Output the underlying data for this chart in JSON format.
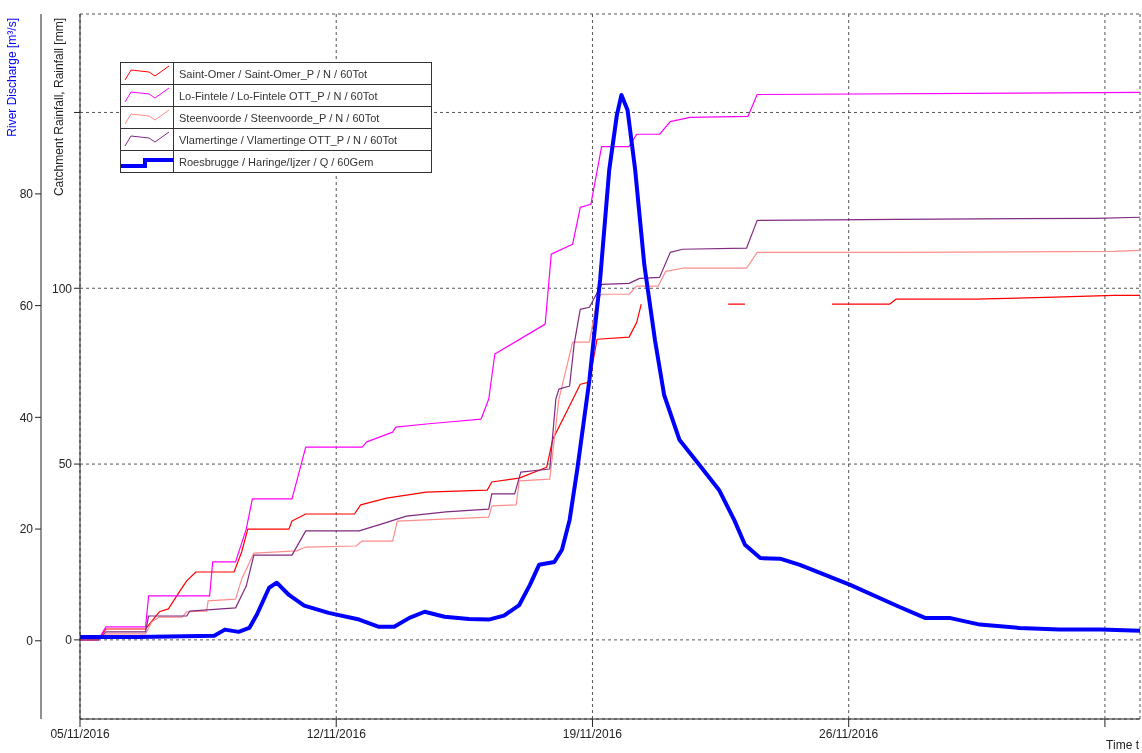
{
  "chart_data": {
    "type": "line",
    "xlabel": "Time t",
    "ylabel": "River Discharge [m³/s]",
    "y2label": "Catchment Rainfall, Rainfall [mm]",
    "xlim": [
      "2016-11-05T00:00",
      "2016-12-03T23:00"
    ],
    "xticks": [
      {
        "value": "2016-11-05",
        "label": "05/11/2016"
      },
      {
        "value": "2016-11-12",
        "label": "12/11/2016"
      },
      {
        "value": "2016-11-19",
        "label": "19/11/2016"
      },
      {
        "value": "2016-11-26",
        "label": "26/11/2016"
      },
      {
        "value": "2016-12-03",
        "label": null
      }
    ],
    "ylim": [
      -14,
      112.2
    ],
    "yticks": [
      0,
      20,
      40,
      60,
      80
    ],
    "y2lim": [
      -22.5,
      178
    ],
    "y2ticks": [
      0,
      50,
      100,
      {
        "value": 150,
        "label": null
      }
    ],
    "grid": true,
    "legend": "top left",
    "series": [
      {
        "name": "Saint-Omer / Saint-Omer_P / N / 60Tot",
        "color": "#ff0000",
        "axis": "y2",
        "x": [
          "2016-11-05T00:00",
          "2016-11-05T12:00",
          "2016-11-05T17:00",
          "2016-11-06T19:00",
          "2016-11-07T04:00",
          "2016-11-07T10:00",
          "2016-11-07T17:00",
          "2016-11-07T22:00",
          "2016-11-08T04:00",
          "2016-11-09T05:00",
          "2016-11-09T10:00",
          "2016-11-09T14:00",
          "2016-11-10T17:00",
          "2016-11-10T19:00",
          "2016-11-11T04:00",
          "2016-11-12T12:00",
          "2016-11-12T16:00",
          "2016-11-13T09:00",
          "2016-11-14T11:00",
          "2016-11-16T03:00",
          "2016-11-16T06:00",
          "2016-11-17T00:00",
          "2016-11-17T18:00",
          "2016-11-17T22:00",
          "2016-11-18T07:00",
          "2016-11-18T16:00",
          "2016-11-18T22:00",
          "2016-11-19T03:00",
          "2016-11-20T00:00",
          "2016-11-20T05:00",
          "2016-11-20T08:00",
          "2016-11-21T12:00",
          "2016-11-22T17:00",
          "2016-11-23T04:00",
          "2016-11-24T09:00",
          "2016-11-25T13:00",
          "2016-11-27T03:00",
          "2016-11-27T07:00",
          "2016-11-29T11:00",
          "2016-12-01T09:00",
          "2016-12-03T06:00",
          "2016-12-03T23:00"
        ],
        "values": [
          0,
          0,
          3.1,
          3.1,
          8.0,
          8.8,
          13.6,
          16.8,
          19.3,
          19.3,
          25.0,
          31.5,
          31.5,
          33.8,
          35.8,
          35.8,
          38.4,
          40.3,
          42.0,
          42.6,
          44.9,
          46.0,
          49.1,
          57.1,
          64.8,
          72.7,
          73.3,
          85.5,
          86.1,
          90.3,
          95.5,
          null,
          95.5,
          95.5,
          null,
          95.5,
          95.5,
          96.9,
          96.9,
          97.4,
          98.0,
          98.0
        ]
      },
      {
        "name": "Lo-Fintele / Lo-Fintele OTT_P / N / 60Tot",
        "color": "#ff00ff",
        "axis": "y2",
        "x": [
          "2016-11-05T00:00",
          "2016-11-05T12:00",
          "2016-11-05T17:00",
          "2016-11-06T19:00",
          "2016-11-06T21:00",
          "2016-11-08T13:00",
          "2016-11-08T15:00",
          "2016-11-09T06:00",
          "2016-11-09T13:00",
          "2016-11-09T17:00",
          "2016-11-10T19:00",
          "2016-11-11T04:00",
          "2016-11-12T17:00",
          "2016-11-12T20:00",
          "2016-11-13T13:00",
          "2016-11-13T15:00",
          "2016-11-14T11:00",
          "2016-11-15T00:00",
          "2016-11-15T23:00",
          "2016-11-16T04:00",
          "2016-11-16T08:00",
          "2016-11-17T17:00",
          "2016-11-17T21:00",
          "2016-11-18T11:00",
          "2016-11-18T16:00",
          "2016-11-18T23:00",
          "2016-11-19T06:00",
          "2016-11-20T00:00",
          "2016-11-20T05:00",
          "2016-11-20T20:00",
          "2016-11-21T03:00",
          "2016-11-21T16:00",
          "2016-11-23T06:00",
          "2016-11-23T12:00",
          "2016-12-03T23:00"
        ],
        "values": [
          0,
          0,
          3.7,
          3.7,
          12.5,
          12.5,
          22.2,
          22.2,
          31.5,
          40.1,
          40.1,
          54.8,
          54.8,
          56.3,
          59.1,
          60.5,
          61.4,
          61.9,
          62.8,
          68.5,
          81.3,
          89.8,
          109.7,
          112.5,
          123.0,
          123.9,
          140.3,
          140.3,
          143.8,
          143.8,
          147.4,
          148.6,
          148.9,
          155.1,
          155.7
        ]
      },
      {
        "name": "Steenvoorde / Steenvoorde_P / N / 60Tot",
        "color": "#ff8c8c",
        "axis": "y2",
        "x": [
          "2016-11-05T00:00",
          "2016-11-05T12:00",
          "2016-11-05T17:00",
          "2016-11-06T19:00",
          "2016-11-06T23:00",
          "2016-11-07T04:00",
          "2016-11-07T19:00",
          "2016-11-07T22:00",
          "2016-11-08T11:00",
          "2016-11-08T12:00",
          "2016-11-09T06:00",
          "2016-11-09T10:00",
          "2016-11-09T18:00",
          "2016-11-10T22:00",
          "2016-11-11T04:00",
          "2016-11-12T13:00",
          "2016-11-12T17:00",
          "2016-11-13T13:00",
          "2016-11-13T16:00",
          "2016-11-16T04:00",
          "2016-11-16T06:00",
          "2016-11-16T22:00",
          "2016-11-17T00:00",
          "2016-11-17T20:00",
          "2016-11-18T02:00",
          "2016-11-18T11:00",
          "2016-11-18T22:00",
          "2016-11-19T03:00",
          "2016-11-19T06:00",
          "2016-11-20T00:00",
          "2016-11-20T05:00",
          "2016-11-20T19:00",
          "2016-11-21T00:00",
          "2016-11-21T11:00",
          "2016-11-23T05:00",
          "2016-11-23T12:00",
          "2016-11-27T09:00",
          "2016-12-03T06:00",
          "2016-12-03T23:00"
        ],
        "values": [
          0,
          0,
          1.7,
          1.7,
          5.1,
          6.5,
          6.5,
          8.0,
          8.2,
          11.1,
          11.6,
          17.3,
          24.7,
          25.3,
          26.4,
          26.7,
          28.1,
          28.1,
          33.8,
          34.9,
          38.1,
          38.4,
          45.2,
          45.7,
          68.5,
          84.7,
          84.7,
          96.9,
          98.3,
          98.3,
          100.6,
          100.6,
          104.8,
          105.7,
          105.7,
          110.2,
          110.2,
          110.5,
          110.8
        ]
      },
      {
        "name": "Vlamertinge / Vlamertinge OTT_P / N / 60Tot",
        "color": "#802a80",
        "axis": "y2",
        "x": [
          "2016-11-05T00:00",
          "2016-11-05T12:00",
          "2016-11-05T17:00",
          "2016-11-06T19:00",
          "2016-11-06T21:00",
          "2016-11-07T22:00",
          "2016-11-08T00:00",
          "2016-11-09T06:00",
          "2016-11-09T13:00",
          "2016-11-09T18:00",
          "2016-11-10T19:00",
          "2016-11-11T04:00",
          "2016-11-12T15:00",
          "2016-11-13T06:00",
          "2016-11-13T22:00",
          "2016-11-15T00:00",
          "2016-11-16T04:00",
          "2016-11-16T06:00",
          "2016-11-16T21:00",
          "2016-11-17T01:00",
          "2016-11-17T20:00",
          "2016-11-18T00:00",
          "2016-11-18T02:00",
          "2016-11-18T09:00",
          "2016-11-18T12:00",
          "2016-11-18T16:00",
          "2016-11-18T22:00",
          "2016-11-19T06:00",
          "2016-11-20T00:00",
          "2016-11-20T07:00",
          "2016-11-20T20:00",
          "2016-11-21T03:00",
          "2016-11-21T11:00",
          "2016-11-23T05:00",
          "2016-11-23T12:00",
          "2016-11-27T08:00",
          "2016-12-02T18:00",
          "2016-12-03T23:00"
        ],
        "values": [
          0,
          0,
          2.3,
          2.3,
          6.8,
          6.8,
          8.2,
          9.1,
          15.3,
          24.1,
          24.1,
          31.0,
          31.0,
          33.0,
          35.2,
          36.4,
          37.2,
          41.5,
          41.5,
          47.7,
          48.6,
          68.5,
          71.3,
          72.2,
          84.1,
          94.0,
          94.6,
          101.1,
          101.4,
          102.8,
          103.1,
          110.2,
          111.1,
          111.4,
          119.3,
          119.6,
          119.9,
          120.2
        ]
      },
      {
        "name": "Roesbrugge / Haringe/Ijzer / Q / 60Gem",
        "color": "#0000ff",
        "axis": "y",
        "x": [
          "2016-11-05T00:00",
          "2016-11-06T14:00",
          "2016-11-08T16:00",
          "2016-11-08T23:00",
          "2016-11-09T08:00",
          "2016-11-09T15:00",
          "2016-11-09T20:00",
          "2016-11-10T04:00",
          "2016-11-10T09:00",
          "2016-11-10T17:00",
          "2016-11-11T03:00",
          "2016-11-11T19:00",
          "2016-11-12T15:00",
          "2016-11-13T04:00",
          "2016-11-13T14:00",
          "2016-11-14T00:00",
          "2016-11-14T10:00",
          "2016-11-14T23:00",
          "2016-11-15T15:00",
          "2016-11-16T04:00",
          "2016-11-16T14:00",
          "2016-11-17T00:00",
          "2016-11-17T07:00",
          "2016-11-17T13:00",
          "2016-11-17T23:00",
          "2016-11-18T04:00",
          "2016-11-18T09:00",
          "2016-11-18T14:00",
          "2016-11-18T22:00",
          "2016-11-19T05:00",
          "2016-11-19T11:00",
          "2016-11-19T16:00",
          "2016-11-19T19:00",
          "2016-11-19T23:00",
          "2016-11-20T04:00",
          "2016-11-20T10:00",
          "2016-11-20T17:00",
          "2016-11-20T23:00",
          "2016-11-21T09:00",
          "2016-11-21T22:00",
          "2016-11-22T11:00",
          "2016-11-22T21:00",
          "2016-11-23T04:00",
          "2016-11-23T14:00",
          "2016-11-24T03:00",
          "2016-11-24T16:00",
          "2016-11-26T01:00",
          "2016-11-27T09:00",
          "2016-11-28T02:00",
          "2016-11-28T18:00",
          "2016-11-29T14:00",
          "2016-11-30T16:00",
          "2016-12-01T18:00",
          "2016-12-02T21:00",
          "2016-12-03T23:00"
        ],
        "values": [
          0.7,
          0.7,
          0.9,
          2.0,
          1.6,
          2.3,
          4.7,
          9.5,
          10.4,
          8.2,
          6.3,
          5.0,
          3.8,
          2.5,
          2.5,
          4.1,
          5.2,
          4.3,
          3.9,
          3.8,
          4.5,
          6.4,
          10.0,
          13.6,
          14.1,
          16.3,
          21.6,
          30.6,
          46.7,
          64.6,
          84.3,
          94.1,
          97.7,
          95.0,
          84.3,
          67.3,
          53.8,
          44.0,
          36.0,
          31.5,
          27.0,
          21.6,
          17.2,
          14.8,
          14.7,
          13.6,
          10.0,
          6.1,
          4.1,
          4.1,
          2.9,
          2.3,
          2.0,
          2.0,
          1.8
        ]
      }
    ]
  }
}
